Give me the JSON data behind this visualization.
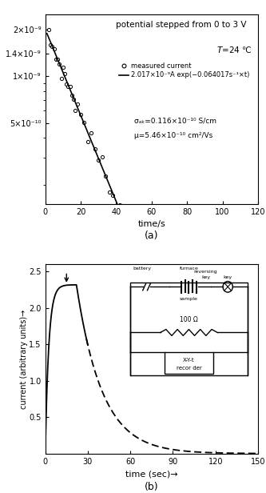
{
  "panel_a": {
    "title": "potential stepped from 0 to 3 V",
    "temp_label": "T=24 ℃",
    "xlabel": "time/s",
    "xlim": [
      0,
      120
    ],
    "ylim_log": [
      1.5e-10,
      2.5e-09
    ],
    "xticks": [
      0,
      20,
      40,
      60,
      80,
      100,
      120
    ],
    "fit_label": "2.017×10⁻⁹A exp(−0.064017s⁻¹×t)",
    "sigma_label": "σₐₖ=0.116×10⁻¹⁰ S/cm",
    "mu_label": "μ=5.46×10⁻¹⁰ cm²/Vs",
    "A": 2.017e-09,
    "k": 0.064017,
    "caption": "(a)"
  },
  "panel_b": {
    "xlabel": "time (sec)→",
    "ylabel": "current (arbitrary units)→",
    "xlim": [
      0,
      150
    ],
    "ylim": [
      0,
      2.6
    ],
    "yticks": [
      0.5,
      1.0,
      1.5,
      2.0,
      2.5
    ],
    "xticks": [
      0,
      30,
      60,
      90,
      120,
      150
    ],
    "caption": "(b)"
  }
}
